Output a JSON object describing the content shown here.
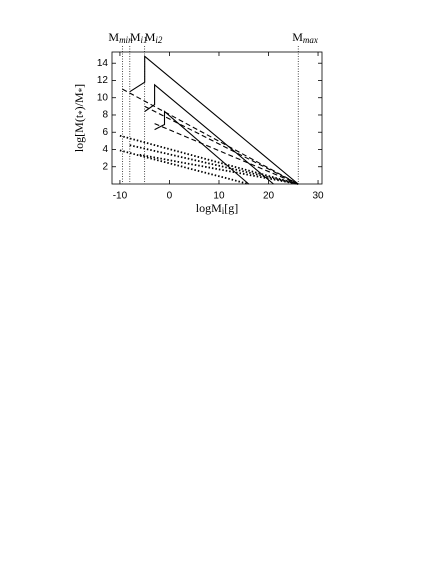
{
  "chart_data": {
    "type": "line",
    "x_label": [
      "logM",
      "i",
      "[g]"
    ],
    "y_label": [
      "log[M(t",
      "*",
      ")/M",
      "*",
      "]"
    ],
    "xlim": [
      -11.6,
      30.8
    ],
    "ylim": [
      0,
      15.3
    ],
    "xticks": [
      -10,
      0,
      10,
      20,
      30
    ],
    "yticks": [
      2,
      4,
      6,
      8,
      10,
      12,
      14
    ],
    "markers": [
      {
        "x": -9.5,
        "label": "M",
        "sub": "min"
      },
      {
        "x": -8,
        "label": "M",
        "sub": "i1"
      },
      {
        "x": -5,
        "label": "M",
        "sub": "i2"
      },
      {
        "x": 26,
        "label": "M",
        "sub": "max"
      }
    ],
    "series": [
      {
        "style": "solid",
        "x": [
          -8,
          -5,
          -5,
          26
        ],
        "values": [
          10.7,
          11.8,
          14.8,
          0
        ]
      },
      {
        "style": "solid",
        "x": [
          -5,
          -3,
          -3,
          21
        ],
        "values": [
          8.4,
          9.2,
          11.5,
          0
        ]
      },
      {
        "style": "solid",
        "x": [
          -3,
          -1,
          -1,
          16
        ],
        "values": [
          6.3,
          6.9,
          8.4,
          0
        ]
      },
      {
        "style": "dashed",
        "x": [
          -9.5,
          26
        ],
        "values": [
          11,
          0
        ]
      },
      {
        "style": "dashed",
        "x": [
          -5,
          26
        ],
        "values": [
          9,
          0
        ]
      },
      {
        "style": "dashed",
        "x": [
          -3,
          26
        ],
        "values": [
          7,
          0
        ]
      },
      {
        "style": "dotted",
        "x": [
          -10,
          26
        ],
        "values": [
          5.6,
          0
        ]
      },
      {
        "style": "dotted",
        "x": [
          -8,
          26
        ],
        "values": [
          4.5,
          0
        ]
      },
      {
        "style": "dotted",
        "x": [
          -6,
          26
        ],
        "values": [
          3.4,
          0
        ]
      },
      {
        "style": "dotted",
        "x": [
          -10,
          16
        ],
        "values": [
          3.9,
          0
        ]
      }
    ]
  }
}
